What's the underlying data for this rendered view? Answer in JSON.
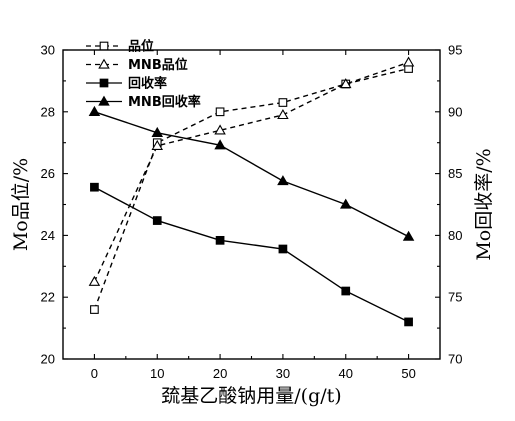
{
  "chart_data": {
    "type": "line",
    "x": [
      0,
      10,
      20,
      30,
      40,
      50
    ],
    "xlim": [
      -5,
      55
    ],
    "x_ticks": [
      "0",
      "10",
      "20",
      "30",
      "40",
      "50"
    ],
    "xlabel": "巯基乙酸钠用量/(g/t)",
    "ylabel_left": "Mo品位/%",
    "ylim_left": [
      20,
      30
    ],
    "y_ticks_left": [
      "20",
      "22",
      "24",
      "26",
      "28",
      "30"
    ],
    "ylabel_right": "Mo回收率/%",
    "ylim_right": [
      70,
      95
    ],
    "y_ticks_right": [
      "70",
      "75",
      "80",
      "85",
      "90",
      "95"
    ],
    "legend_position": "top-left",
    "series": [
      {
        "name": "品位",
        "axis": "left",
        "marker": "square-open",
        "line": "dashed",
        "values": [
          21.6,
          27.0,
          28.0,
          28.3,
          28.9,
          29.4
        ]
      },
      {
        "name": "MNB品位",
        "axis": "left",
        "marker": "triangle-open",
        "line": "dashed",
        "values": [
          22.5,
          26.9,
          27.4,
          27.9,
          28.9,
          29.6
        ]
      },
      {
        "name": "回收率",
        "axis": "right",
        "marker": "square-filled",
        "line": "solid",
        "values": [
          83.9,
          81.2,
          79.6,
          78.9,
          75.5,
          73.0
        ]
      },
      {
        "name": "MNB回收率",
        "axis": "right",
        "marker": "triangle-filled",
        "line": "solid",
        "values": [
          90.0,
          88.3,
          87.3,
          84.4,
          82.5,
          79.9
        ]
      }
    ]
  }
}
